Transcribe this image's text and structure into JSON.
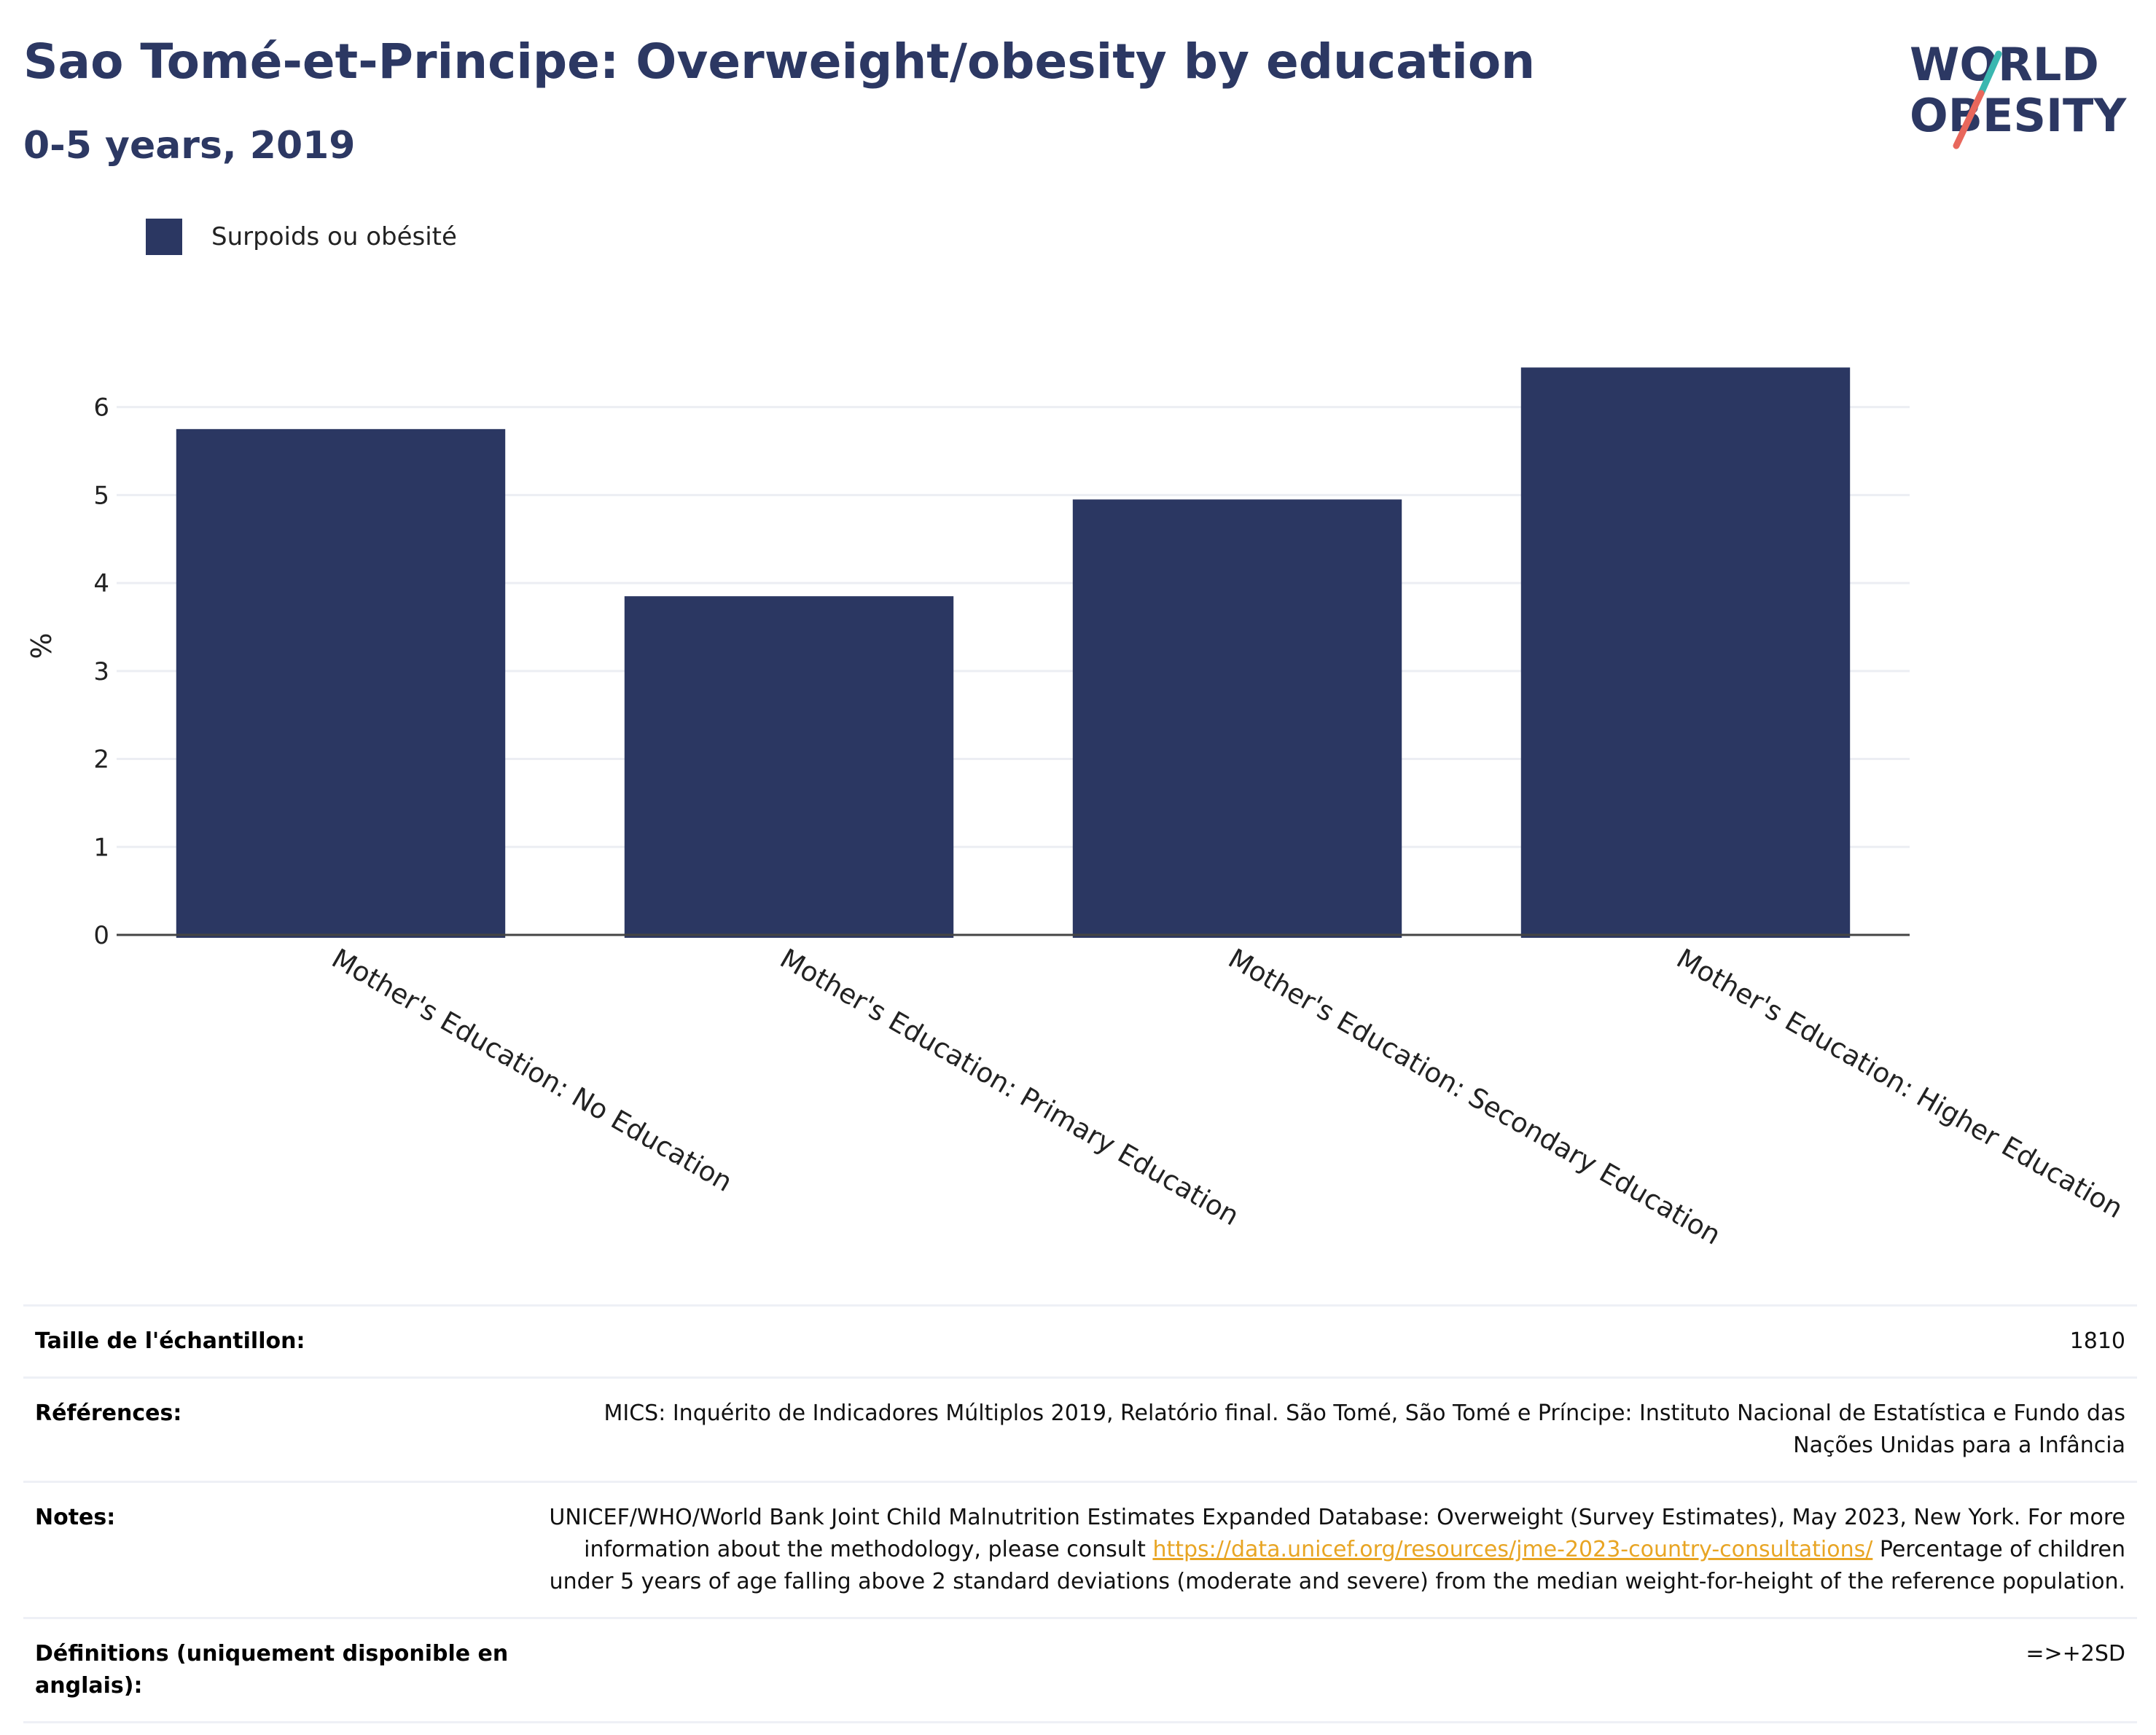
{
  "header": {
    "title": "Sao Tomé-et-Principe: Overweight/obesity by education",
    "subtitle": "0-5 years, 2019"
  },
  "logo": {
    "line1": "WORLD",
    "line2": "OBESITY",
    "slash_colors": [
      "#3ab7b0",
      "#e8675c"
    ],
    "text_color": "#2c3863"
  },
  "legend": {
    "label": "Surpoids ou obésité",
    "color": "#2b3762"
  },
  "chart_data": {
    "type": "bar",
    "categories": [
      "Mother's Education: No Education",
      "Mother's Education: Primary Education",
      "Mother's Education: Secondary Education",
      "Mother's Education: Higher Education"
    ],
    "series": [
      {
        "name": "Surpoids ou obésité",
        "values": [
          5.75,
          3.85,
          4.95,
          6.45
        ]
      }
    ],
    "ylabel": "%",
    "yticks": [
      0,
      1,
      2,
      3,
      4,
      5,
      6
    ],
    "ylim": [
      0,
      6.9
    ],
    "grid": true,
    "legend_position": "top-left",
    "bar_color": "#2b3762"
  },
  "info": {
    "sample_size": {
      "label": "Taille de l'échantillon:",
      "value": "1810"
    },
    "references": {
      "label": "Références:",
      "value": "MICS: Inquérito de Indicadores Múltiplos 2019, Relatório final. São Tomé, São Tomé e Príncipe: Instituto Nacional de Estatística e Fundo das Nações Unidas para a Infância"
    },
    "notes": {
      "label": "Notes:",
      "text_before": "UNICEF/WHO/World Bank Joint Child Malnutrition Estimates Expanded Database: Overweight (Survey Estimates), May 2023, New York. For more information about the methodology, please consult ",
      "link": "https://data.unicef.org/resources/jme-2023-country-consultations/",
      "text_after": " Percentage of children under 5 years of age falling above 2 standard deviations (moderate and severe) from the median weight-for-height of the reference population."
    },
    "definitions": {
      "label": "Définitions (uniquement disponible en anglais):",
      "value": "=>+2SD"
    }
  }
}
